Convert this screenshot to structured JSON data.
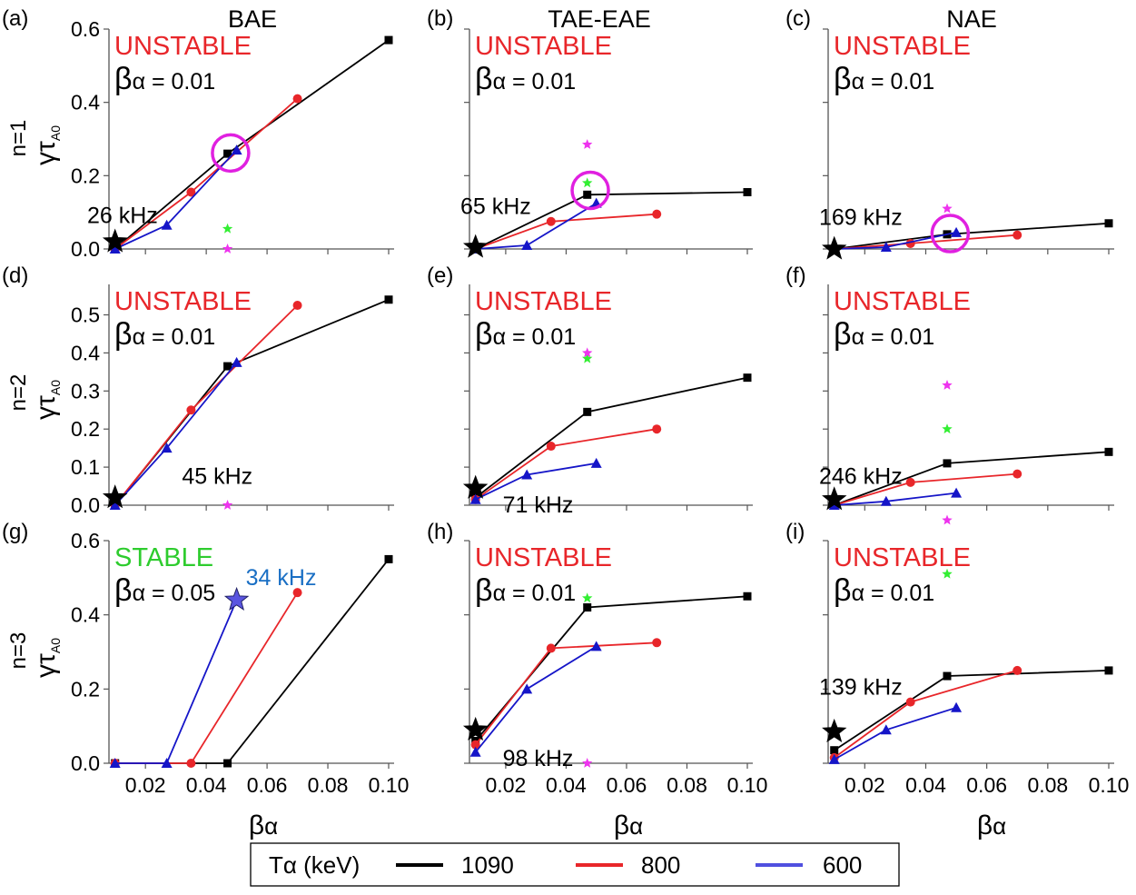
{
  "column_titles": [
    "BAE",
    "TAE-EAE",
    "NAE"
  ],
  "row_labels": [
    "n=1",
    "n=2",
    "n=3"
  ],
  "ylabel_main": "γτ",
  "ylabel_sub": "A0",
  "xlabel_main": "β",
  "xlabel_sub": "α",
  "xticks": [
    "0.02",
    "0.04",
    "0.06",
    "0.08",
    "0.10"
  ],
  "legend": {
    "title": "Tα (keV)",
    "entries": [
      {
        "label": "1090",
        "color": "#000000"
      },
      {
        "label": "800",
        "color": "#e8262a"
      },
      {
        "label": "600",
        "color": "#5050e0"
      }
    ]
  },
  "colors": {
    "T1090": "#000000",
    "T800": "#e8262a",
    "T600": "#1515c8",
    "unstable": "#e8262a",
    "stable": "#2ecc2e",
    "circle": "#e020e0",
    "green_star": "#33ee33",
    "magenta_star": "#ee33ee",
    "blue_freq": "#1a6fc4",
    "big_blue_star": "#5a55e0"
  },
  "chart_data": [
    {
      "id": "a",
      "panel_label": "(a)",
      "type": "line",
      "status": "UNSTABLE",
      "beta_text": "α = 0.01",
      "yticks": [
        "0.0",
        "0.2",
        "0.4",
        "0.6"
      ],
      "ylim": [
        0,
        0.6
      ],
      "xlim": [
        0.008,
        0.1
      ],
      "series": [
        {
          "name": "1090",
          "marker": "square",
          "x": [
            0.01,
            0.047,
            0.1
          ],
          "y": [
            0.0,
            0.26,
            0.57
          ]
        },
        {
          "name": "800",
          "marker": "circle",
          "x": [
            0.01,
            0.035,
            0.07
          ],
          "y": [
            0.0,
            0.155,
            0.41
          ]
        },
        {
          "name": "600",
          "marker": "triangle",
          "x": [
            0.01,
            0.027,
            0.05
          ],
          "y": [
            0.0,
            0.065,
            0.27
          ]
        }
      ],
      "big_star": {
        "x": 0.01,
        "y": 0.02,
        "color": "black"
      },
      "freq": {
        "text": "26 kHz",
        "x": 0.0095,
        "y": 0.09
      },
      "green_stars": [
        {
          "x": 0.047,
          "y": 0.055
        }
      ],
      "magenta_stars": [
        {
          "x": 0.047,
          "y": 0.0
        }
      ],
      "circle": {
        "x": 0.048,
        "y": 0.262
      }
    },
    {
      "id": "b",
      "panel_label": "(b)",
      "type": "line",
      "status": "UNSTABLE",
      "beta_text": "α = 0.01",
      "yticks": [],
      "ylim": [
        0,
        0.6
      ],
      "xlim": [
        0.008,
        0.1
      ],
      "series": [
        {
          "name": "1090",
          "marker": "square",
          "x": [
            0.01,
            0.047,
            0.1
          ],
          "y": [
            0.0,
            0.148,
            0.155
          ]
        },
        {
          "name": "800",
          "marker": "circle",
          "x": [
            0.01,
            0.035,
            0.07
          ],
          "y": [
            0.0,
            0.075,
            0.095
          ]
        },
        {
          "name": "600",
          "marker": "triangle",
          "x": [
            0.01,
            0.027,
            0.05
          ],
          "y": [
            0.0,
            0.01,
            0.125
          ]
        }
      ],
      "big_star": {
        "x": 0.01,
        "y": 0.005,
        "color": "black"
      },
      "freq": {
        "text": "65 kHz",
        "x": 0.0095,
        "y": 0.115
      },
      "green_stars": [
        {
          "x": 0.047,
          "y": 0.18
        }
      ],
      "magenta_stars": [
        {
          "x": 0.047,
          "y": 0.285
        }
      ],
      "circle": {
        "x": 0.048,
        "y": 0.16
      }
    },
    {
      "id": "c",
      "panel_label": "(c)",
      "type": "line",
      "status": "UNSTABLE",
      "beta_text": "α = 0.01",
      "yticks": [],
      "ylim": [
        0,
        0.6
      ],
      "xlim": [
        0.008,
        0.1
      ],
      "series": [
        {
          "name": "1090",
          "marker": "square",
          "x": [
            0.01,
            0.047,
            0.1
          ],
          "y": [
            0.0,
            0.04,
            0.07
          ]
        },
        {
          "name": "800",
          "marker": "circle",
          "x": [
            0.01,
            0.035,
            0.07
          ],
          "y": [
            0.0,
            0.015,
            0.038
          ]
        },
        {
          "name": "600",
          "marker": "triangle",
          "x": [
            0.01,
            0.027,
            0.05
          ],
          "y": [
            0.0,
            0.005,
            0.045
          ]
        }
      ],
      "big_star": {
        "x": 0.01,
        "y": 0.0,
        "color": "black"
      },
      "freq": {
        "text": "169 kHz",
        "x": 0.0095,
        "y": 0.085
      },
      "green_stars": [],
      "magenta_stars": [
        {
          "x": 0.047,
          "y": 0.11
        }
      ],
      "circle": {
        "x": 0.048,
        "y": 0.042
      }
    },
    {
      "id": "d",
      "panel_label": "(d)",
      "type": "line",
      "status": "UNSTABLE",
      "beta_text": "α = 0.01",
      "yticks": [
        "0.0",
        "0.1",
        "0.2",
        "0.3",
        "0.4",
        "0.5"
      ],
      "ylim": [
        0,
        0.58
      ],
      "xlim": [
        0.008,
        0.1
      ],
      "series": [
        {
          "name": "1090",
          "marker": "square",
          "x": [
            0.01,
            0.047,
            0.1
          ],
          "y": [
            0.0,
            0.365,
            0.54
          ]
        },
        {
          "name": "800",
          "marker": "circle",
          "x": [
            0.01,
            0.035,
            0.07
          ],
          "y": [
            0.0,
            0.25,
            0.525
          ]
        },
        {
          "name": "600",
          "marker": "triangle",
          "x": [
            0.01,
            0.027,
            0.05
          ],
          "y": [
            0.0,
            0.15,
            0.375
          ]
        }
      ],
      "big_star": {
        "x": 0.01,
        "y": 0.02,
        "color": "black"
      },
      "freq": {
        "text": "45 kHz",
        "x": 0.032,
        "y": 0.075
      },
      "green_stars": [],
      "magenta_stars": [
        {
          "x": 0.047,
          "y": 0.0
        }
      ],
      "circle": null
    },
    {
      "id": "e",
      "panel_label": "(e)",
      "type": "line",
      "status": "UNSTABLE",
      "beta_text": "α = 0.01",
      "yticks": [],
      "ylim": [
        0,
        0.58
      ],
      "xlim": [
        0.008,
        0.1
      ],
      "series": [
        {
          "name": "1090",
          "marker": "square",
          "x": [
            0.01,
            0.047,
            0.1
          ],
          "y": [
            0.02,
            0.245,
            0.335
          ]
        },
        {
          "name": "800",
          "marker": "circle",
          "x": [
            0.01,
            0.035,
            0.07
          ],
          "y": [
            0.015,
            0.155,
            0.2
          ]
        },
        {
          "name": "600",
          "marker": "triangle",
          "x": [
            0.01,
            0.027,
            0.05
          ],
          "y": [
            0.015,
            0.08,
            0.11
          ]
        }
      ],
      "big_star": {
        "x": 0.01,
        "y": 0.045,
        "color": "black"
      },
      "freq": {
        "text": "71 kHz",
        "x": 0.019,
        "y": 0.0
      },
      "green_stars": [
        {
          "x": 0.047,
          "y": 0.385
        }
      ],
      "magenta_stars": [
        {
          "x": 0.047,
          "y": 0.4
        }
      ],
      "circle": null
    },
    {
      "id": "f",
      "panel_label": "(f)",
      "type": "line",
      "status": "UNSTABLE",
      "beta_text": "α = 0.01",
      "yticks": [],
      "ylim": [
        0,
        0.58
      ],
      "xlim": [
        0.008,
        0.1
      ],
      "series": [
        {
          "name": "1090",
          "marker": "square",
          "x": [
            0.01,
            0.047,
            0.1
          ],
          "y": [
            0.0,
            0.11,
            0.14
          ]
        },
        {
          "name": "800",
          "marker": "circle",
          "x": [
            0.01,
            0.035,
            0.07
          ],
          "y": [
            0.0,
            0.06,
            0.082
          ]
        },
        {
          "name": "600",
          "marker": "triangle",
          "x": [
            0.01,
            0.027,
            0.05
          ],
          "y": [
            0.0,
            0.01,
            0.032
          ]
        }
      ],
      "big_star": {
        "x": 0.01,
        "y": 0.015,
        "color": "black"
      },
      "freq": {
        "text": "246 kHz",
        "x": 0.0095,
        "y": 0.075
      },
      "green_stars": [
        {
          "x": 0.047,
          "y": 0.2
        }
      ],
      "magenta_stars": [
        {
          "x": 0.047,
          "y": 0.315
        }
      ],
      "circle": null
    },
    {
      "id": "g",
      "panel_label": "(g)",
      "type": "line",
      "status": "STABLE",
      "beta_text": "α = 0.05",
      "yticks": [
        "0.0",
        "0.2",
        "0.4",
        "0.6"
      ],
      "ylim": [
        0,
        0.6
      ],
      "xlim": [
        0.008,
        0.1
      ],
      "series": [
        {
          "name": "1090",
          "marker": "square",
          "x": [
            0.01,
            0.047,
            0.1
          ],
          "y": [
            0.0,
            0.0,
            0.55
          ]
        },
        {
          "name": "800",
          "marker": "circle",
          "x": [
            0.01,
            0.035,
            0.07
          ],
          "y": [
            0.0,
            0.0,
            0.46
          ]
        },
        {
          "name": "600",
          "marker": "triangle",
          "x": [
            0.01,
            0.027,
            0.05
          ],
          "y": [
            0.0,
            0.0,
            0.44
          ]
        }
      ],
      "big_star": {
        "x": 0.05,
        "y": 0.44,
        "color": "blue"
      },
      "freq": {
        "text": "34 kHz",
        "x": 0.053,
        "y": 0.5
      },
      "green_stars": [],
      "magenta_stars": [],
      "circle": null
    },
    {
      "id": "h",
      "panel_label": "(h)",
      "type": "line",
      "status": "UNSTABLE",
      "beta_text": "α = 0.01",
      "yticks": [],
      "ylim": [
        0,
        0.6
      ],
      "xlim": [
        0.008,
        0.1
      ],
      "series": [
        {
          "name": "1090",
          "marker": "square",
          "x": [
            0.01,
            0.047,
            0.1
          ],
          "y": [
            0.06,
            0.42,
            0.45
          ]
        },
        {
          "name": "800",
          "marker": "circle",
          "x": [
            0.01,
            0.035,
            0.07
          ],
          "y": [
            0.05,
            0.31,
            0.325
          ]
        },
        {
          "name": "600",
          "marker": "triangle",
          "x": [
            0.01,
            0.027,
            0.05
          ],
          "y": [
            0.03,
            0.2,
            0.315
          ]
        }
      ],
      "big_star": {
        "x": 0.01,
        "y": 0.09,
        "color": "black"
      },
      "freq": {
        "text": "98 kHz",
        "x": 0.019,
        "y": 0.012
      },
      "green_stars": [
        {
          "x": 0.047,
          "y": 0.445
        }
      ],
      "magenta_stars": [
        {
          "x": 0.047,
          "y": 0.0
        }
      ],
      "circle": null
    },
    {
      "id": "i",
      "panel_label": "(i)",
      "type": "line",
      "status": "UNSTABLE",
      "beta_text": "α = 0.01",
      "yticks": [],
      "ylim": [
        0,
        0.6
      ],
      "xlim": [
        0.008,
        0.1
      ],
      "series": [
        {
          "name": "1090",
          "marker": "square",
          "x": [
            0.01,
            0.047,
            0.1
          ],
          "y": [
            0.035,
            0.235,
            0.25
          ]
        },
        {
          "name": "800",
          "marker": "circle",
          "x": [
            0.01,
            0.035,
            0.07
          ],
          "y": [
            0.015,
            0.165,
            0.25
          ]
        },
        {
          "name": "600",
          "marker": "triangle",
          "x": [
            0.01,
            0.027,
            0.05
          ],
          "y": [
            0.01,
            0.09,
            0.15
          ]
        }
      ],
      "big_star": {
        "x": 0.01,
        "y": 0.085,
        "color": "black"
      },
      "freq": {
        "text": "139 kHz",
        "x": 0.0095,
        "y": 0.205
      },
      "green_stars": [
        {
          "x": 0.047,
          "y": 0.51
        }
      ],
      "magenta_stars": [
        {
          "x": 0.047,
          "y": 0.655
        }
      ],
      "circle": null
    }
  ]
}
